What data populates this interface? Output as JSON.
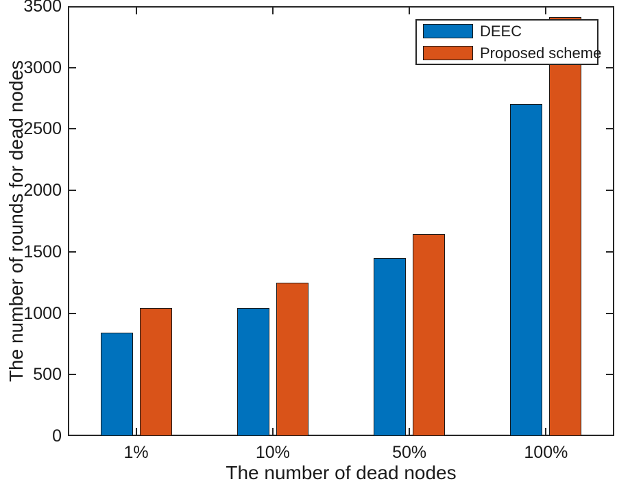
{
  "chart_data": {
    "type": "bar",
    "title": "",
    "categories": [
      "1%",
      "10%",
      "50%",
      "100%"
    ],
    "series": [
      {
        "name": "DEEC",
        "color": "#0072BD",
        "values": [
          840,
          1040,
          1450,
          2705
        ]
      },
      {
        "name": "Proposed scheme",
        "color": "#D95319",
        "values": [
          1040,
          1250,
          1645,
          3410
        ]
      }
    ],
    "xlabel": "The number of dead nodes",
    "ylabel": "The number of rounds for dead nodes",
    "ylim": [
      0,
      3500
    ],
    "y_tick_step": 500,
    "y_tick_labels": [
      "0",
      "500",
      "1000",
      "1500",
      "2000",
      "2500",
      "3000",
      "3500"
    ],
    "grid": false,
    "legend_position": "top-right",
    "bar_edge_color": "#1a1a1a",
    "axis_color": "#262626",
    "text_color": "#1a1a1a"
  }
}
